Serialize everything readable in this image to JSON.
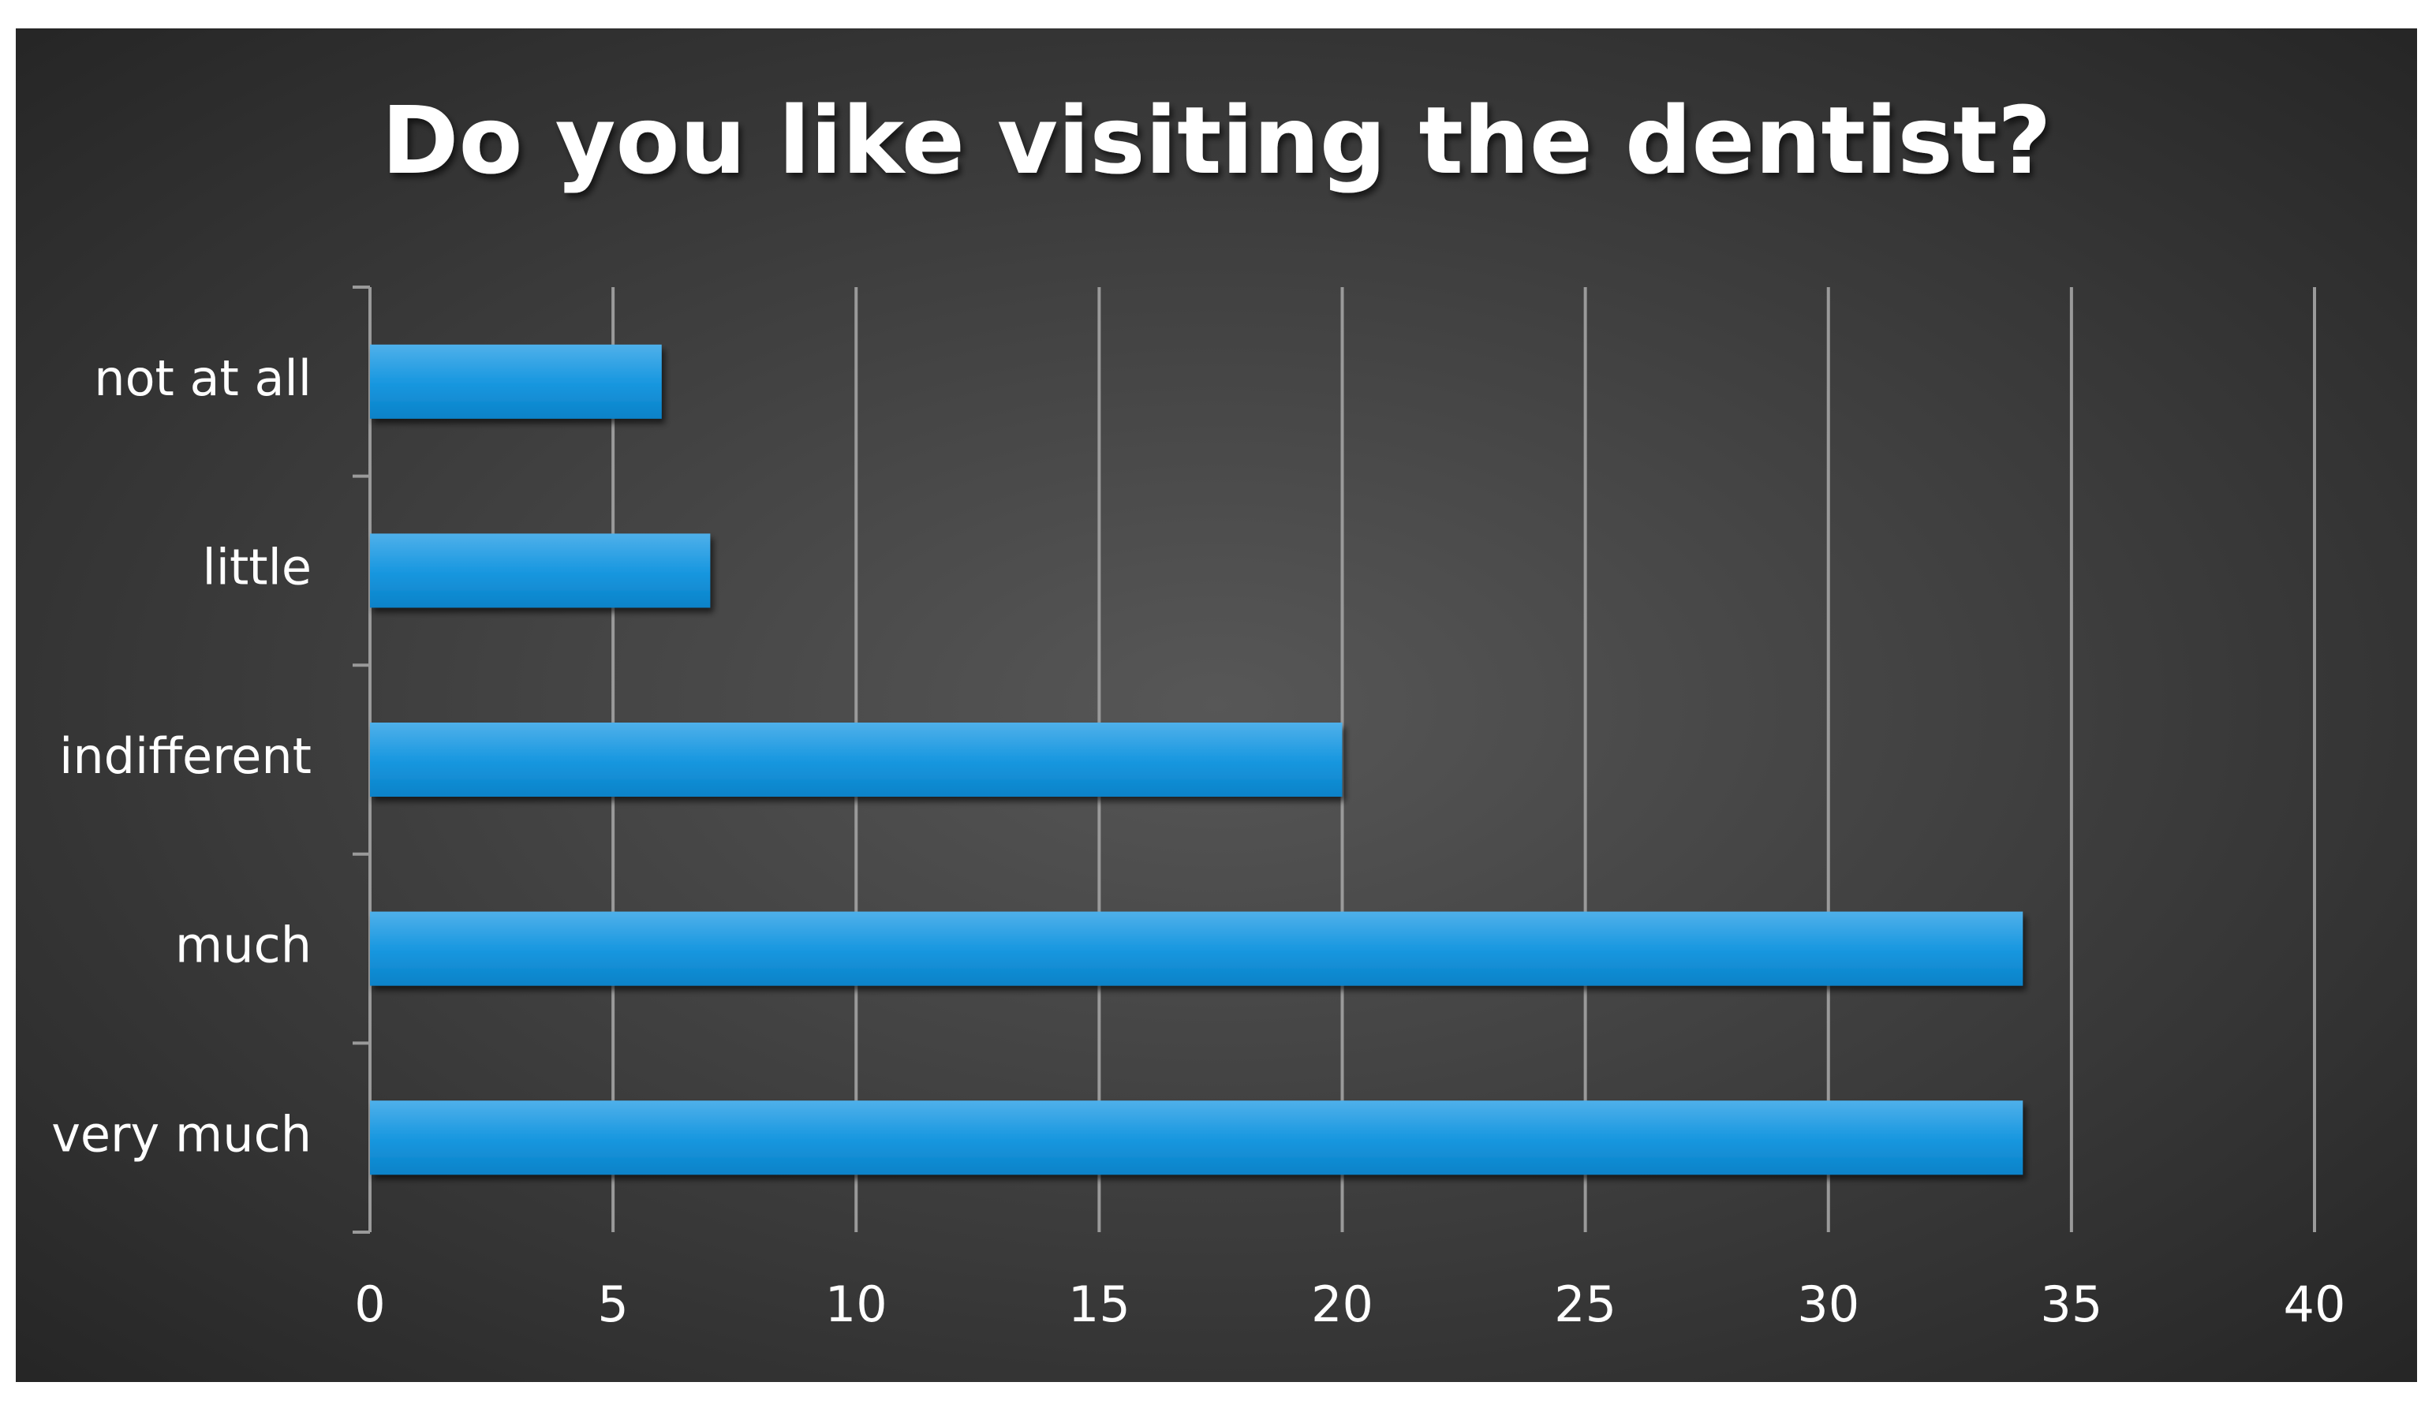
{
  "chart_data": {
    "type": "barh",
    "title": "Do you like visiting the dentist?",
    "categories": [
      "not at all",
      "little",
      "indifferent",
      "much",
      "very much"
    ],
    "values": [
      6,
      7,
      20,
      34,
      34
    ],
    "color": "#0f90da",
    "xlim": [
      0,
      40
    ],
    "xticks": [
      0,
      5,
      10,
      15,
      20,
      25,
      30,
      35,
      40
    ],
    "grid": true
  }
}
